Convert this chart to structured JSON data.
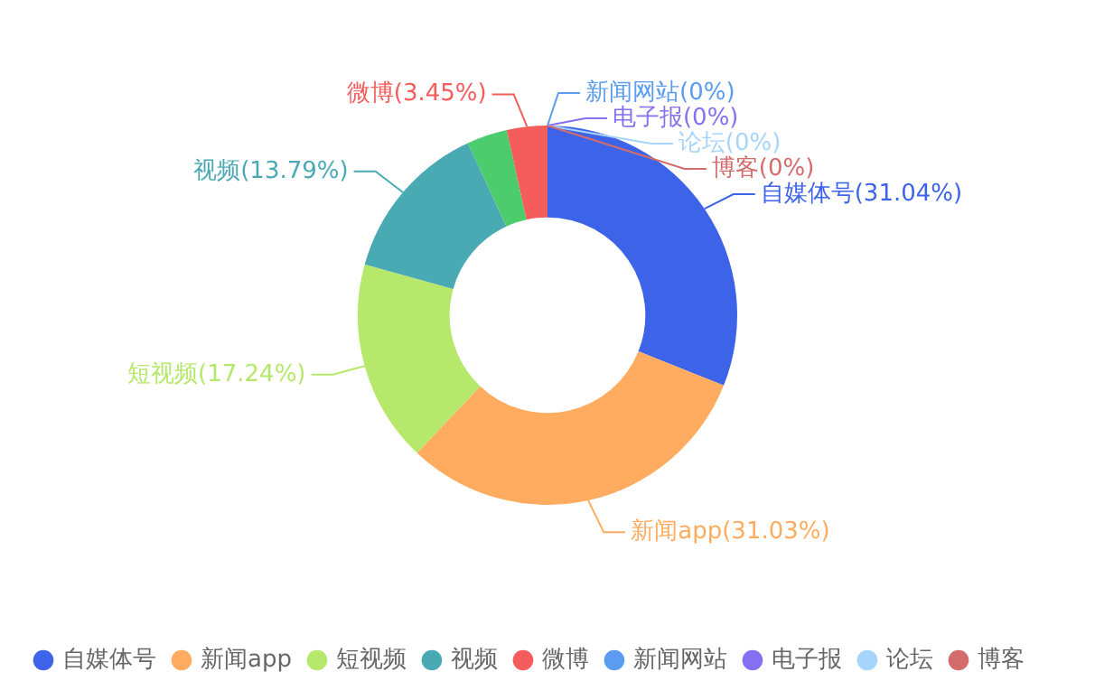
{
  "chart_data": {
    "type": "donut",
    "categories": [
      "自媒体号",
      "新闻app",
      "短视频",
      "视频",
      null,
      "微博",
      "新闻网站",
      "电子报",
      "论坛",
      "博客"
    ],
    "values": [
      31.04,
      31.03,
      17.24,
      13.79,
      3.45,
      3.45,
      0,
      0,
      0,
      0
    ],
    "value_labels": [
      "(31.04%)",
      "(31.03%)",
      "(17.24%)",
      "(13.79%)",
      null,
      "(3.45%)",
      "(0%)",
      "(0%)",
      "(0%)",
      "(0%)"
    ],
    "colors": [
      "#3d63e8",
      "#ffac60",
      "#b6e86c",
      "#4aaab4",
      "#4ccc6c",
      "#f55c5c",
      "#5c9cf0",
      "#8470f0",
      "#a6d4fa",
      "#d46c6c"
    ],
    "legend": "bottom"
  }
}
